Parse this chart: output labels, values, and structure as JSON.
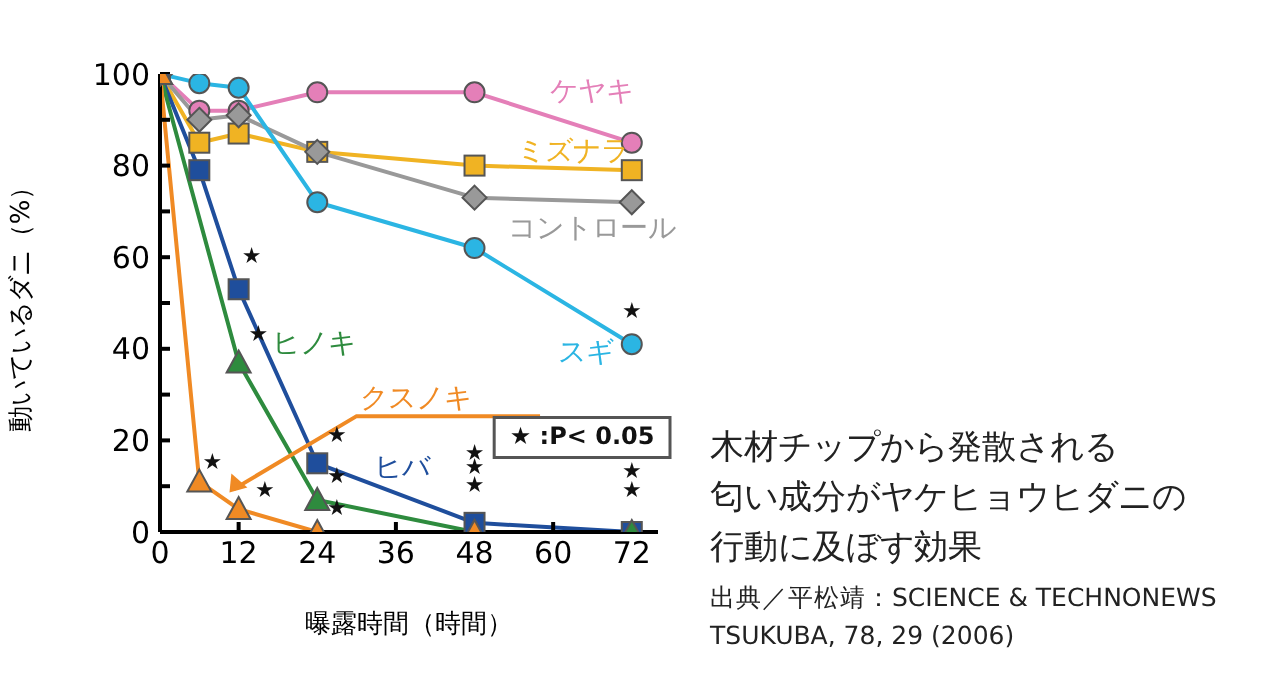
{
  "chart_data": {
    "type": "line",
    "title": "木材チップから発散される",
    "subtitle": "匂い成分がヤケヒョウヒダニの行動に及ぼす効果",
    "xlabel": "曝露時間（時間）",
    "ylabel": "動いているダニ（%）",
    "xlim": [
      0,
      76
    ],
    "xticks": [
      0,
      12,
      24,
      36,
      48,
      60,
      72
    ],
    "ylim": [
      0,
      100
    ],
    "yticks": [
      0,
      {
        "value": 10,
        "label": null
      },
      20,
      {
        "value": 30,
        "label": null
      },
      40,
      {
        "value": 50,
        "label": null
      },
      60,
      {
        "value": 70,
        "label": null
      },
      80,
      {
        "value": 90,
        "label": null
      },
      100
    ],
    "grid": false,
    "legend": false,
    "line_style": "solid",
    "series": [
      {
        "name": "ケヤキ",
        "color": "#e47fb8",
        "marker": "circle",
        "x": [
          0,
          6,
          12,
          24,
          48,
          72
        ],
        "values": [
          100,
          92,
          92,
          96,
          96,
          85
        ]
      },
      {
        "name": "ミズナラ",
        "color": "#f0b323",
        "marker": "square",
        "x": [
          0,
          6,
          12,
          24,
          48,
          72
        ],
        "values": [
          100,
          85,
          87,
          83,
          80,
          79
        ]
      },
      {
        "name": "コントロール",
        "color": "#999999",
        "marker": "diamond",
        "x": [
          0,
          6,
          12,
          24,
          48,
          72
        ],
        "values": [
          100,
          90,
          91,
          83,
          73,
          72
        ]
      },
      {
        "name": "スギ",
        "color": "#2bb5e3",
        "marker": "circle",
        "x": [
          0,
          6,
          12,
          24,
          48,
          72
        ],
        "values": [
          100,
          98,
          97,
          72,
          62,
          41
        ]
      },
      {
        "name": "ヒバ",
        "color": "#1f4e9c",
        "marker": "square",
        "x": [
          0,
          6,
          12,
          24,
          48,
          72
        ],
        "values": [
          100,
          79,
          53,
          15,
          2,
          0
        ]
      },
      {
        "name": "ヒノキ",
        "color": "#2e8b3e",
        "marker": "triangle",
        "x": [
          0,
          12,
          24,
          48,
          72
        ],
        "values": [
          100,
          37,
          7,
          0,
          0
        ]
      },
      {
        "name": "クスノキ",
        "color": "#f08a24",
        "marker": "triangle",
        "x": [
          0,
          6,
          12,
          24,
          48
        ],
        "values": [
          100,
          11,
          5,
          0,
          0
        ]
      }
    ],
    "annotations": [
      "★ :P< 0.05",
      "出典／平松靖：SCIENCE & TECHNONEWS TSUKUBA, 78, 29 (2006)",
      "★",
      "★",
      "★",
      "★",
      "★",
      "★",
      "★",
      "★",
      "★",
      "★",
      "★",
      "★",
      "★"
    ]
  }
}
